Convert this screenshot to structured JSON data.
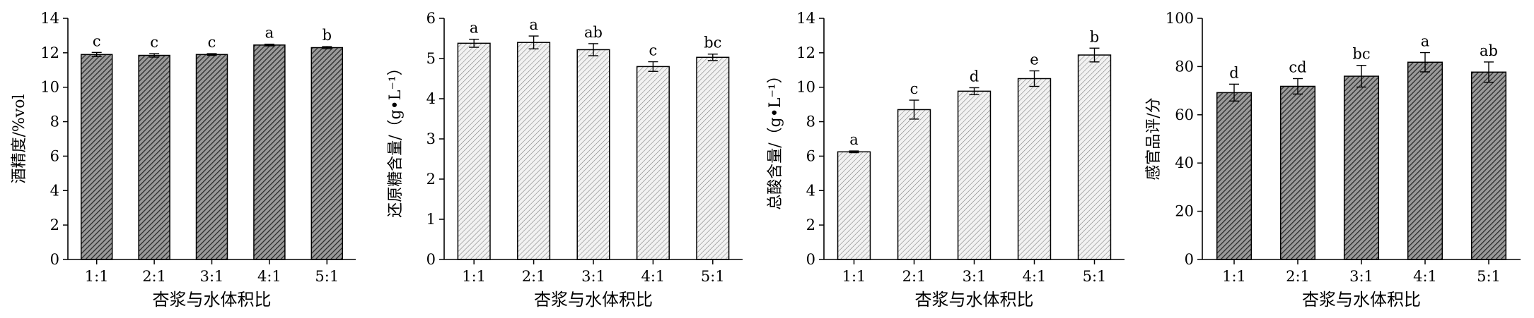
{
  "chart_data": [
    {
      "type": "bar",
      "categories": [
        "1:1",
        "2:1",
        "3:1",
        "4:1",
        "5:1"
      ],
      "values": [
        11.9,
        11.85,
        11.9,
        12.45,
        12.3
      ],
      "errors": [
        0.12,
        0.1,
        0.05,
        0.05,
        0.06
      ],
      "letters": [
        "c",
        "c",
        "c",
        "a",
        "b"
      ],
      "xlabel": "杏浆与水体积比",
      "ylabel": "酒精度/%vol",
      "ylim": [
        0,
        14
      ],
      "yticks": [
        0,
        2,
        4,
        6,
        8,
        10,
        12,
        14
      ],
      "fill": "dense-hatch"
    },
    {
      "type": "bar",
      "categories": [
        "1:1",
        "2:1",
        "3:1",
        "4:1",
        "5:1"
      ],
      "values": [
        5.38,
        5.4,
        5.22,
        4.8,
        5.03
      ],
      "errors": [
        0.1,
        0.16,
        0.15,
        0.12,
        0.08
      ],
      "letters": [
        "a",
        "a",
        "ab",
        "c",
        "bc"
      ],
      "xlabel": "杏浆与水体积比",
      "ylabel": "还原糖含量/（g•L⁻¹）",
      "ylim": [
        0,
        6
      ],
      "yticks": [
        0,
        1,
        2,
        3,
        4,
        5,
        6
      ],
      "fill": "light-hatch"
    },
    {
      "type": "bar",
      "categories": [
        "1:1",
        "2:1",
        "3:1",
        "4:1",
        "5:1"
      ],
      "values": [
        6.25,
        8.7,
        9.77,
        10.5,
        11.87
      ],
      "errors": [
        0.05,
        0.55,
        0.2,
        0.45,
        0.4
      ],
      "letters": [
        "a",
        "c",
        "d",
        "e",
        "b"
      ],
      "xlabel": "杏浆与水体积比",
      "ylabel": "总酸含量/（g•L⁻¹）",
      "ylim": [
        0,
        14
      ],
      "yticks": [
        0,
        2,
        4,
        6,
        8,
        10,
        12,
        14
      ],
      "fill": "light-hatch"
    },
    {
      "type": "bar",
      "categories": [
        "1:1",
        "2:1",
        "3:1",
        "4:1",
        "5:1"
      ],
      "values": [
        69.2,
        71.8,
        76,
        81.8,
        77.7
      ],
      "errors": [
        3.5,
        3.2,
        4.5,
        4,
        4.2
      ],
      "letters": [
        "d",
        "cd",
        "bc",
        "a",
        "ab"
      ],
      "xlabel": "杏浆与水体积比",
      "ylabel": "感官品评/分",
      "ylim": [
        0,
        100
      ],
      "yticks": [
        0,
        20,
        40,
        60,
        80,
        100
      ],
      "fill": "dense-hatch"
    }
  ]
}
